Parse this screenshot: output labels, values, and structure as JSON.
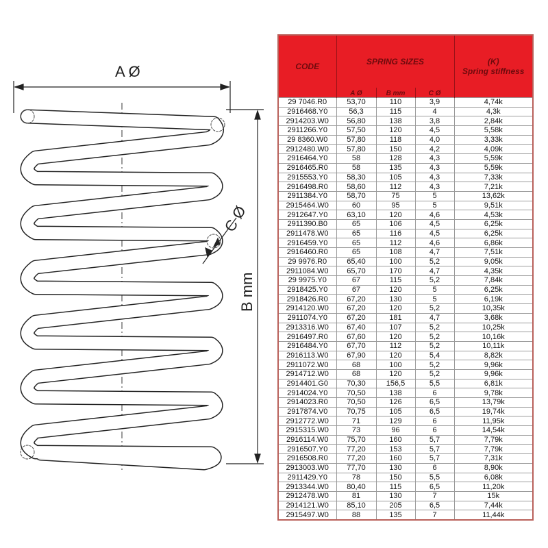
{
  "drawing": {
    "label_a": "A Ø",
    "label_b": "B mm",
    "label_c": "C Ø"
  },
  "table": {
    "headers": {
      "code": "CODE",
      "spring_sizes": "SPRING SIZES",
      "stiffness_line1": "(K)",
      "stiffness_line2": "Spring stiffness",
      "a": "A Ø",
      "b": "B mm",
      "c": "C Ø"
    },
    "header_color": "#e81d25",
    "rows": [
      [
        "29 7046.R0",
        "53,70",
        "110",
        "3,9",
        "4,74k"
      ],
      [
        "2916468.Y0",
        "56,3",
        "115",
        "4",
        "4,3k"
      ],
      [
        "2914203.W0",
        "56,80",
        "138",
        "3,8",
        "2,84k"
      ],
      [
        "2911266.Y0",
        "57,50",
        "120",
        "4,5",
        "5,58k"
      ],
      [
        "29 8360.W0",
        "57,80",
        "118",
        "4,0",
        "3,33k"
      ],
      [
        "2912480.W0",
        "57,80",
        "150",
        "4,2",
        "4,09k"
      ],
      [
        "2916464.Y0",
        "58",
        "128",
        "4,3",
        "5,59k"
      ],
      [
        "2916465.R0",
        "58",
        "135",
        "4,3",
        "5,59k"
      ],
      [
        "2915553.Y0",
        "58,30",
        "105",
        "4,3",
        "7,33k"
      ],
      [
        "2916498.R0",
        "58,60",
        "112",
        "4,3",
        "7,21k"
      ],
      [
        "2911384.Y0",
        "58,70",
        "75",
        "5",
        "13,62k"
      ],
      [
        "2915464.W0",
        "60",
        "95",
        "5",
        "9,51k"
      ],
      [
        "2912647.Y0",
        "63,10",
        "120",
        "4,6",
        "4,53k"
      ],
      [
        "2911390.B0",
        "65",
        "106",
        "4,5",
        "6,25k"
      ],
      [
        "2911478.W0",
        "65",
        "116",
        "4,5",
        "6,25k"
      ],
      [
        "2916459.Y0",
        "65",
        "112",
        "4,6",
        "6,86k"
      ],
      [
        "2916460.R0",
        "65",
        "108",
        "4,7",
        "7,51k"
      ],
      [
        "29 9976.R0",
        "65,40",
        "100",
        "5,2",
        "9,05k"
      ],
      [
        "2911084.W0",
        "65,70",
        "170",
        "4,7",
        "4,35k"
      ],
      [
        "29 9975.Y0",
        "67",
        "115",
        "5,2",
        "7,84k"
      ],
      [
        "2918425.Y0",
        "67",
        "120",
        "5",
        "6,25k"
      ],
      [
        "2918426.R0",
        "67,20",
        "130",
        "5",
        "6,19k"
      ],
      [
        "2914120.W0",
        "67,20",
        "120",
        "5,2",
        "10,35k"
      ],
      [
        "2911074.Y0",
        "67,20",
        "181",
        "4,7",
        "3,68k"
      ],
      [
        "2913316.W0",
        "67,40",
        "107",
        "5,2",
        "10,25k"
      ],
      [
        "2916497.R0",
        "67,60",
        "120",
        "5,2",
        "10,16k"
      ],
      [
        "2916484.Y0",
        "67,70",
        "112",
        "5,2",
        "10,11k"
      ],
      [
        "2916113.W0",
        "67,90",
        "120",
        "5,4",
        "8,82k"
      ],
      [
        "2911072.W0",
        "68",
        "100",
        "5,2",
        "9,96k"
      ],
      [
        "2914712.W0",
        "68",
        "120",
        "5,2",
        "9,96k"
      ],
      [
        "2914401.G0",
        "70,30",
        "156,5",
        "5,5",
        "6,81k"
      ],
      [
        "2914024.Y0",
        "70,50",
        "138",
        "6",
        "9,78k"
      ],
      [
        "2914023.R0",
        "70,50",
        "126",
        "6,5",
        "13,79k"
      ],
      [
        "2917874.V0",
        "70,75",
        "105",
        "6,5",
        "19,74k"
      ],
      [
        "2912772.W0",
        "71",
        "129",
        "6",
        "11,95k"
      ],
      [
        "2915315.W0",
        "73",
        "96",
        "6",
        "14,54k"
      ],
      [
        "2916114.W0",
        "75,70",
        "160",
        "5,7",
        "7,79k"
      ],
      [
        "2916507.Y0",
        "77,20",
        "153",
        "5,7",
        "7,79k"
      ],
      [
        "2916508.R0",
        "77,20",
        "160",
        "5,7",
        "7,31k"
      ],
      [
        "2913003.W0",
        "77,70",
        "130",
        "6",
        "8,90k"
      ],
      [
        "2911429.Y0",
        "78",
        "150",
        "5,5",
        "6,08k"
      ],
      [
        "2913344.W0",
        "80,40",
        "115",
        "6,5",
        "11,20k"
      ],
      [
        "2912478.W0",
        "81",
        "130",
        "7",
        "15k"
      ],
      [
        "2914121.W0",
        "85,10",
        "205",
        "6,5",
        "7,44k"
      ],
      [
        "2915497.W0",
        "88",
        "135",
        "7",
        "11,44k"
      ]
    ]
  }
}
